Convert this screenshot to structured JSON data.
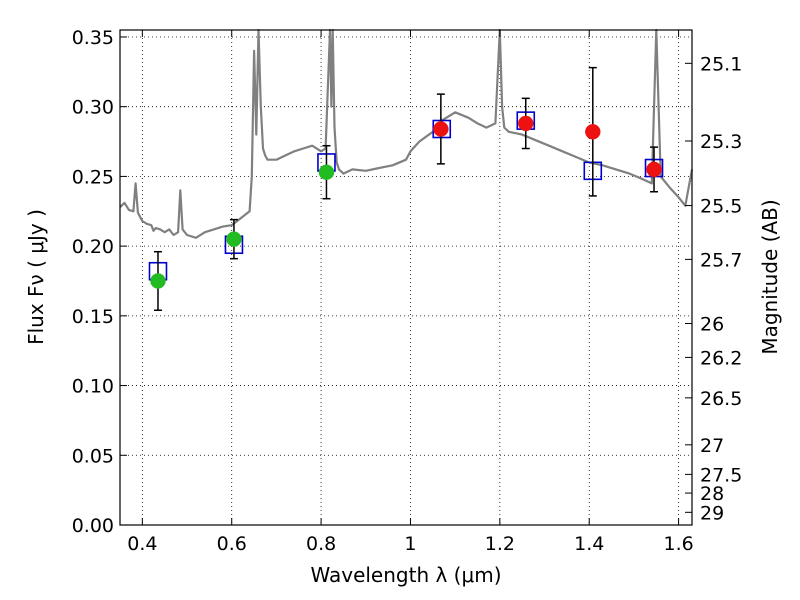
{
  "chart_data": {
    "type": "scatter",
    "xlabel": "Wavelength  λ (μm)",
    "ylabel": "Flux  Fν  ( μJy )",
    "y2label": "Magnitude (AB)",
    "xlim": [
      0.35,
      1.63
    ],
    "ylim": [
      0.0,
      0.355
    ],
    "grid": true,
    "x_ticks": [
      0.4,
      0.6,
      0.8,
      1.0,
      1.2,
      1.4,
      1.6
    ],
    "x_tick_labels": [
      "0.4",
      "0.6",
      "0.8",
      "1",
      "1.2",
      "1.4",
      "1.6"
    ],
    "y_ticks": [
      0.0,
      0.05,
      0.1,
      0.15,
      0.2,
      0.25,
      0.3,
      0.35
    ],
    "y_tick_labels": [
      "0.00",
      "0.05",
      "0.10",
      "0.15",
      "0.20",
      "0.25",
      "0.30",
      "0.35"
    ],
    "y2_ticks": [
      {
        "label": "25.1",
        "flux": 0.3311
      },
      {
        "label": "25.3",
        "flux": 0.2754
      },
      {
        "label": "25.5",
        "flux": 0.2291
      },
      {
        "label": "25.7",
        "flux": 0.1905
      },
      {
        "label": "26",
        "flux": 0.1445
      },
      {
        "label": "26.2",
        "flux": 0.1202
      },
      {
        "label": "26.5",
        "flux": 0.0912
      },
      {
        "label": "27",
        "flux": 0.0575
      },
      {
        "label": "27.5",
        "flux": 0.0363
      },
      {
        "label": "28",
        "flux": 0.0229
      },
      {
        "label": "29",
        "flux": 0.0091
      }
    ],
    "series": [
      {
        "kind": "line",
        "color": "#808080",
        "x": [
          0.35,
          0.36,
          0.37,
          0.38,
          0.385,
          0.39,
          0.4,
          0.41,
          0.42,
          0.425,
          0.43,
          0.44,
          0.45,
          0.46,
          0.47,
          0.48,
          0.485,
          0.49,
          0.495,
          0.5,
          0.52,
          0.54,
          0.56,
          0.58,
          0.6,
          0.62,
          0.64,
          0.645,
          0.65,
          0.655,
          0.66,
          0.665,
          0.67,
          0.675,
          0.68,
          0.7,
          0.72,
          0.74,
          0.76,
          0.78,
          0.8,
          0.81,
          0.82,
          0.823,
          0.826,
          0.83,
          0.835,
          0.84,
          0.85,
          0.87,
          0.9,
          0.93,
          0.96,
          0.99,
          1.0,
          1.02,
          1.05,
          1.07,
          1.1,
          1.13,
          1.15,
          1.17,
          1.19,
          1.2,
          1.205,
          1.21,
          1.22,
          1.25,
          1.28,
          1.31,
          1.34,
          1.37,
          1.4,
          1.43,
          1.46,
          1.49,
          1.52,
          1.54,
          1.55,
          1.56,
          1.58,
          1.6,
          1.615,
          1.63
        ],
        "y": [
          0.228,
          0.231,
          0.226,
          0.225,
          0.245,
          0.224,
          0.218,
          0.216,
          0.215,
          0.211,
          0.213,
          0.212,
          0.21,
          0.212,
          0.208,
          0.21,
          0.24,
          0.212,
          0.21,
          0.208,
          0.206,
          0.21,
          0.212,
          0.214,
          0.215,
          0.22,
          0.225,
          0.25,
          0.34,
          0.28,
          0.355,
          0.3,
          0.27,
          0.265,
          0.262,
          0.262,
          0.265,
          0.268,
          0.27,
          0.272,
          0.268,
          0.27,
          0.355,
          0.3,
          0.355,
          0.285,
          0.26,
          0.255,
          0.252,
          0.255,
          0.254,
          0.256,
          0.258,
          0.262,
          0.268,
          0.275,
          0.282,
          0.29,
          0.296,
          0.292,
          0.288,
          0.285,
          0.288,
          0.355,
          0.3,
          0.285,
          0.282,
          0.28,
          0.276,
          0.272,
          0.268,
          0.264,
          0.26,
          0.258,
          0.255,
          0.252,
          0.248,
          0.245,
          0.355,
          0.25,
          0.242,
          0.235,
          0.229,
          0.255
        ]
      },
      {
        "kind": "model-boxes",
        "color": "#0000cc",
        "x": [
          0.435,
          0.605,
          0.812,
          1.07,
          1.258,
          1.408,
          1.545
        ],
        "y": [
          0.182,
          0.201,
          0.26,
          0.284,
          0.29,
          0.254,
          0.256
        ]
      },
      {
        "kind": "points",
        "color": "#22bb22",
        "x": [
          0.435,
          0.605,
          0.812
        ],
        "y": [
          0.175,
          0.205,
          0.253
        ],
        "err": [
          0.021,
          0.014,
          0.019
        ]
      },
      {
        "kind": "points",
        "color": "#ee1111",
        "x": [
          1.068,
          1.258,
          1.408,
          1.545
        ],
        "y": [
          0.284,
          0.288,
          0.282,
          0.255
        ],
        "err": [
          0.025,
          0.018,
          0.046,
          0.016
        ]
      }
    ]
  }
}
